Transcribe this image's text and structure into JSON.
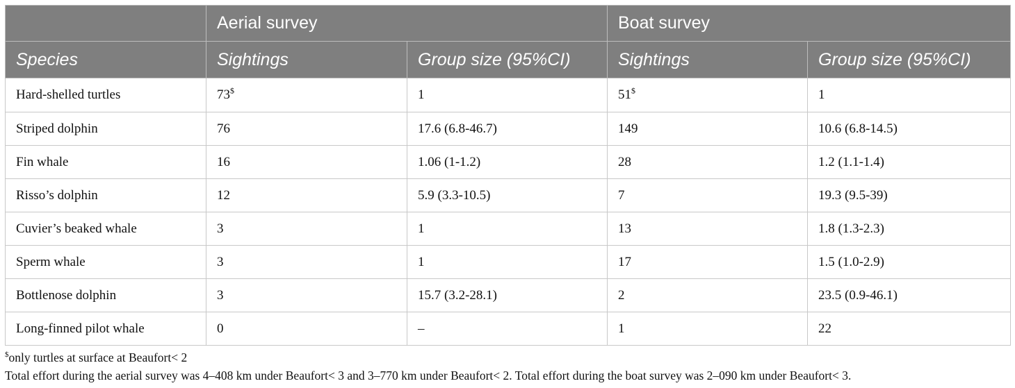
{
  "table": {
    "group_headers": [
      "",
      "Aerial survey",
      "Boat survey"
    ],
    "column_headers": [
      "Species",
      "Sightings",
      "Group size (95%CI)",
      "Sightings",
      "Group size (95%CI)"
    ],
    "rows": [
      {
        "species": "Hard-shelled turtles",
        "aerial_sightings": "73",
        "aerial_mark": "$",
        "aerial_group": "1",
        "boat_sightings": "51",
        "boat_mark": "$",
        "boat_group": "1"
      },
      {
        "species": "Striped dolphin",
        "aerial_sightings": "76",
        "aerial_mark": "",
        "aerial_group": "17.6 (6.8-46.7)",
        "boat_sightings": "149",
        "boat_mark": "",
        "boat_group": "10.6 (6.8-14.5)"
      },
      {
        "species": "Fin whale",
        "aerial_sightings": "16",
        "aerial_mark": "",
        "aerial_group": "1.06 (1-1.2)",
        "boat_sightings": "28",
        "boat_mark": "",
        "boat_group": "1.2 (1.1-1.4)"
      },
      {
        "species": "Risso’s dolphin",
        "aerial_sightings": "12",
        "aerial_mark": "",
        "aerial_group": "5.9 (3.3-10.5)",
        "boat_sightings": "7",
        "boat_mark": "",
        "boat_group": "19.3 (9.5-39)"
      },
      {
        "species": "Cuvier’s beaked whale",
        "aerial_sightings": "3",
        "aerial_mark": "",
        "aerial_group": "1",
        "boat_sightings": "13",
        "boat_mark": "",
        "boat_group": "1.8 (1.3-2.3)"
      },
      {
        "species": "Sperm whale",
        "aerial_sightings": "3",
        "aerial_mark": "",
        "aerial_group": "1",
        "boat_sightings": "17",
        "boat_mark": "",
        "boat_group": "1.5 (1.0-2.9)"
      },
      {
        "species": "Bottlenose dolphin",
        "aerial_sightings": "3",
        "aerial_mark": "",
        "aerial_group": "15.7 (3.2-28.1)",
        "boat_sightings": "2",
        "boat_mark": "",
        "boat_group": "23.5 (0.9-46.1)"
      },
      {
        "species": "Long-finned pilot whale",
        "aerial_sightings": "0",
        "aerial_mark": "",
        "aerial_group": "–",
        "boat_sightings": "1",
        "boat_mark": "",
        "boat_group": "22"
      }
    ]
  },
  "footnotes": {
    "mark": "$",
    "mark_text": "only turtles at surface at Beaufort< 2",
    "effort_text": "Total effort during the aerial survey was 4–408 km under Beaufort< 3 and 3–770 km under Beaufort< 2. Total effort during the boat survey was 2–090 km under Beaufort< 3."
  }
}
